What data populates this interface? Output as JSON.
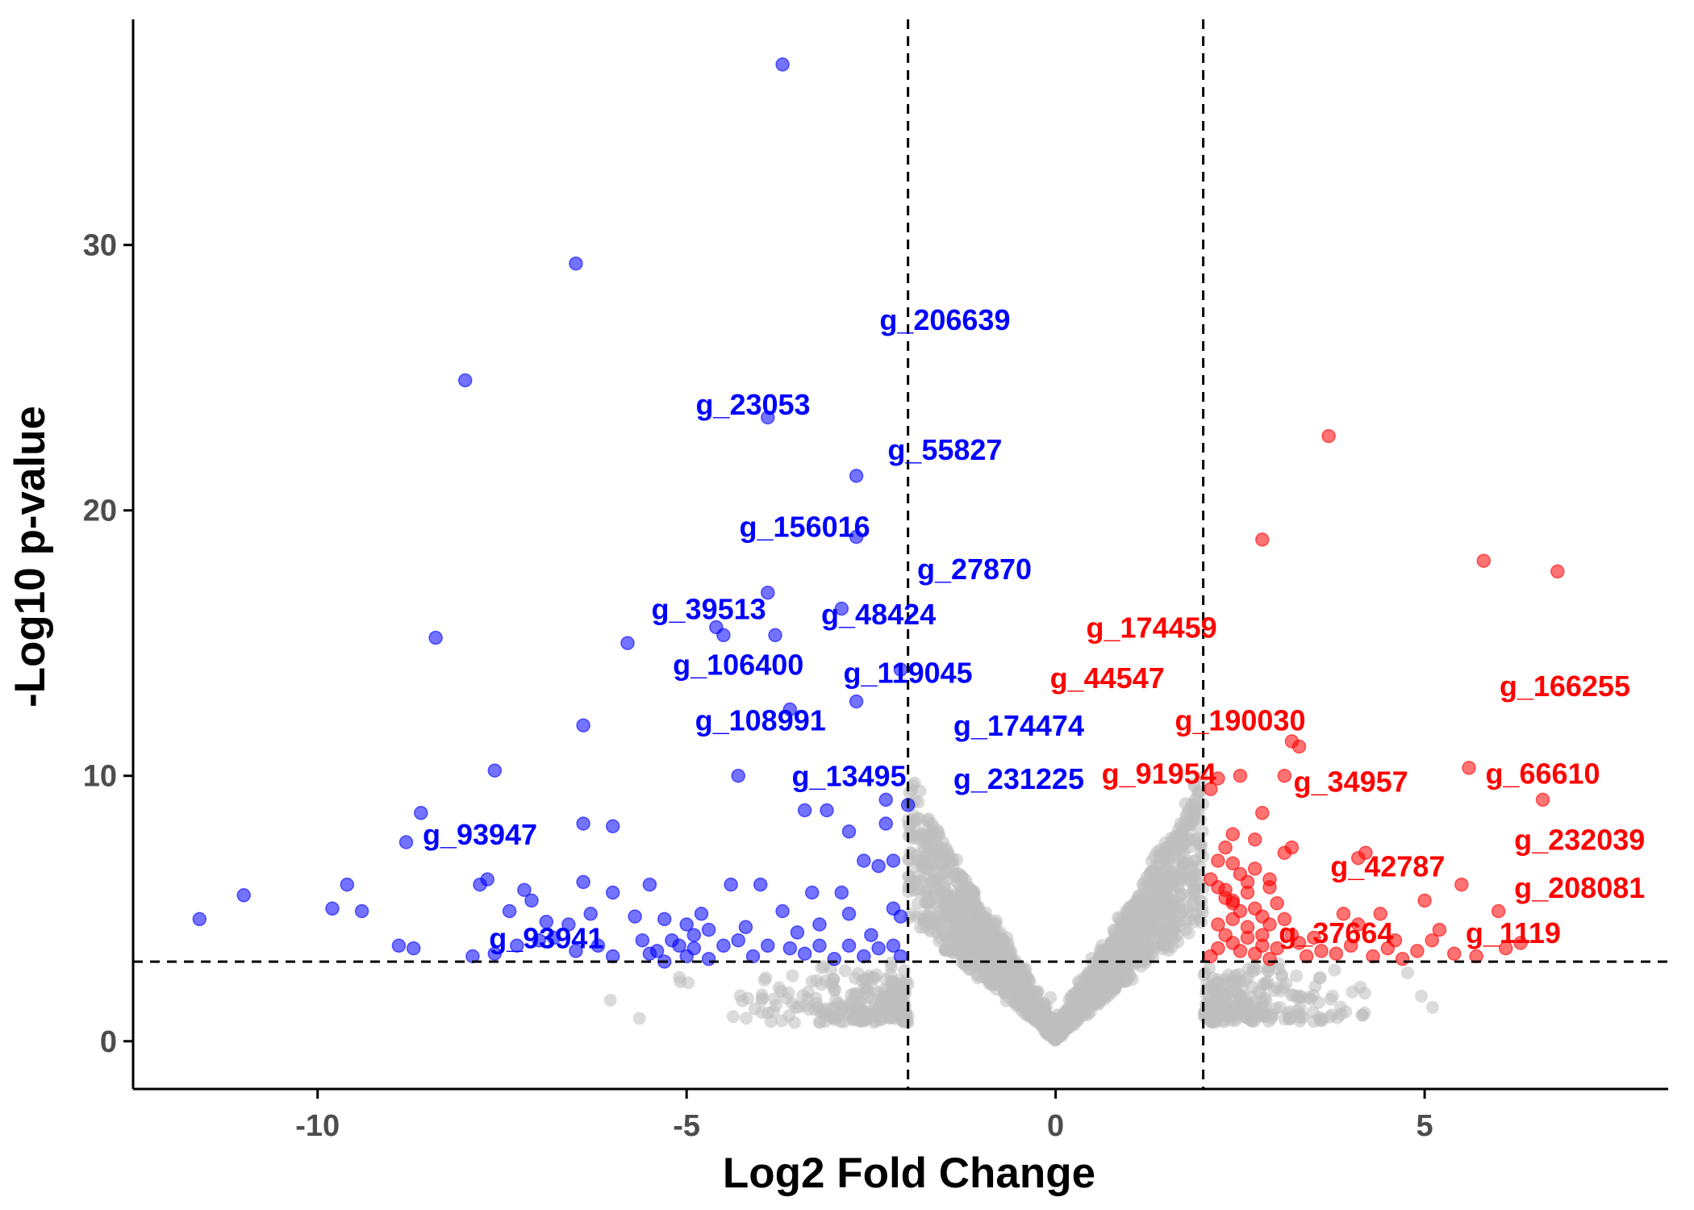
{
  "chart_data": {
    "type": "scatter",
    "title": "",
    "xlabel": "Log2 Fold Change",
    "ylabel": "-Log10 p-value",
    "xlim": [
      -12.5,
      8.3
    ],
    "ylim": [
      -1.8,
      38.5
    ],
    "xticks": [
      -10,
      -5,
      0,
      5
    ],
    "yticks": [
      0,
      10,
      20,
      30
    ],
    "grid": false,
    "legend": "none",
    "thresholds": {
      "log2fc": [
        -2,
        2
      ],
      "neg_log10_p": 3
    },
    "colors": {
      "down": "#0000ff",
      "up": "#ff0000",
      "ns": "#bebebe",
      "line": "#000000"
    },
    "series": [
      {
        "name": "down",
        "points": [
          [
            -3.7,
            36.8
          ],
          [
            -6.5,
            29.3
          ],
          [
            -8.0,
            24.9
          ],
          [
            -3.9,
            23.5
          ],
          [
            -2.7,
            21.3
          ],
          [
            -2.7,
            19.0
          ],
          [
            -3.9,
            16.9
          ],
          [
            -2.9,
            16.3
          ],
          [
            -4.6,
            15.6
          ],
          [
            -4.5,
            15.3
          ],
          [
            -3.8,
            15.3
          ],
          [
            -8.4,
            15.2
          ],
          [
            -5.8,
            15.0
          ],
          [
            -2.1,
            14.0
          ],
          [
            -3.6,
            12.5
          ],
          [
            -2.7,
            12.8
          ],
          [
            -6.4,
            11.9
          ],
          [
            -7.6,
            10.2
          ],
          [
            -4.3,
            10.0
          ],
          [
            -3.4,
            8.7
          ],
          [
            -3.1,
            8.7
          ],
          [
            -2.3,
            9.1
          ],
          [
            -2.0,
            8.9
          ],
          [
            -8.6,
            8.6
          ],
          [
            -6.4,
            8.2
          ],
          [
            -6.0,
            8.1
          ],
          [
            -2.3,
            8.2
          ],
          [
            -2.8,
            7.9
          ],
          [
            -8.8,
            7.5
          ],
          [
            -7.7,
            6.1
          ],
          [
            -7.8,
            5.9
          ],
          [
            -9.6,
            5.9
          ],
          [
            -11.0,
            5.5
          ],
          [
            -9.8,
            5.0
          ],
          [
            -9.4,
            4.9
          ],
          [
            -11.6,
            4.6
          ],
          [
            -7.2,
            5.7
          ],
          [
            -7.1,
            5.3
          ],
          [
            -6.4,
            6.0
          ],
          [
            -6.0,
            5.6
          ],
          [
            -5.5,
            5.9
          ],
          [
            -4.8,
            4.8
          ],
          [
            -4.4,
            5.9
          ],
          [
            -4.0,
            5.9
          ],
          [
            -3.3,
            5.6
          ],
          [
            -2.9,
            5.6
          ],
          [
            -2.6,
            6.8
          ],
          [
            -2.4,
            6.6
          ],
          [
            -2.2,
            6.8
          ],
          [
            -7.4,
            4.9
          ],
          [
            -6.9,
            4.5
          ],
          [
            -6.6,
            4.4
          ],
          [
            -6.3,
            4.8
          ],
          [
            -5.7,
            4.7
          ],
          [
            -5.3,
            4.6
          ],
          [
            -5.0,
            4.4
          ],
          [
            -4.7,
            4.2
          ],
          [
            -4.2,
            4.3
          ],
          [
            -3.7,
            4.9
          ],
          [
            -3.2,
            4.4
          ],
          [
            -2.8,
            4.8
          ],
          [
            -2.2,
            5.0
          ],
          [
            -2.1,
            4.7
          ],
          [
            -8.9,
            3.6
          ],
          [
            -8.7,
            3.5
          ],
          [
            -7.9,
            3.2
          ],
          [
            -7.6,
            3.3
          ],
          [
            -7.3,
            3.6
          ],
          [
            -7.0,
            3.8
          ],
          [
            -6.8,
            3.9
          ],
          [
            -6.5,
            3.4
          ],
          [
            -6.2,
            3.6
          ],
          [
            -6.0,
            3.2
          ],
          [
            -5.6,
            3.8
          ],
          [
            -5.4,
            3.4
          ],
          [
            -5.3,
            3.0
          ],
          [
            -5.1,
            3.6
          ],
          [
            -4.9,
            3.5
          ],
          [
            -4.7,
            3.1
          ],
          [
            -4.5,
            3.6
          ],
          [
            -4.3,
            3.8
          ],
          [
            -4.1,
            3.2
          ],
          [
            -3.9,
            3.6
          ],
          [
            -3.6,
            3.5
          ],
          [
            -3.4,
            3.3
          ],
          [
            -3.2,
            3.6
          ],
          [
            -3.0,
            3.1
          ],
          [
            -2.8,
            3.6
          ],
          [
            -2.6,
            3.2
          ],
          [
            -2.4,
            3.5
          ],
          [
            -2.2,
            3.6
          ],
          [
            -2.1,
            3.2
          ],
          [
            -5.2,
            3.8
          ],
          [
            -4.9,
            4.0
          ],
          [
            -3.5,
            4.1
          ],
          [
            -2.5,
            4.0
          ],
          [
            -5.5,
            3.3
          ],
          [
            -5.0,
            3.2
          ]
        ]
      },
      {
        "name": "up",
        "points": [
          [
            3.7,
            22.8
          ],
          [
            2.8,
            18.9
          ],
          [
            5.8,
            18.1
          ],
          [
            6.8,
            17.7
          ],
          [
            3.2,
            11.3
          ],
          [
            3.3,
            11.1
          ],
          [
            5.6,
            10.3
          ],
          [
            6.6,
            9.1
          ],
          [
            2.2,
            9.9
          ],
          [
            2.5,
            10.0
          ],
          [
            3.1,
            10.0
          ],
          [
            2.1,
            9.5
          ],
          [
            2.8,
            8.6
          ],
          [
            2.4,
            7.8
          ],
          [
            2.7,
            7.6
          ],
          [
            3.1,
            7.1
          ],
          [
            3.2,
            7.3
          ],
          [
            2.3,
            7.3
          ],
          [
            2.2,
            6.8
          ],
          [
            2.4,
            6.7
          ],
          [
            2.7,
            6.5
          ],
          [
            2.9,
            6.1
          ],
          [
            4.1,
            6.9
          ],
          [
            4.2,
            7.1
          ],
          [
            5.5,
            5.9
          ],
          [
            6.0,
            4.9
          ],
          [
            5.0,
            5.3
          ],
          [
            4.4,
            4.8
          ],
          [
            3.9,
            4.8
          ],
          [
            4.1,
            4.4
          ],
          [
            2.1,
            6.1
          ],
          [
            2.2,
            5.8
          ],
          [
            2.3,
            5.4
          ],
          [
            2.4,
            5.2
          ],
          [
            2.5,
            4.9
          ],
          [
            2.6,
            5.6
          ],
          [
            2.7,
            5.0
          ],
          [
            2.8,
            4.7
          ],
          [
            2.9,
            4.4
          ],
          [
            3.0,
            5.2
          ],
          [
            3.1,
            4.6
          ],
          [
            2.2,
            4.4
          ],
          [
            2.3,
            4.0
          ],
          [
            2.4,
            3.7
          ],
          [
            2.5,
            3.4
          ],
          [
            2.6,
            3.9
          ],
          [
            2.7,
            3.3
          ],
          [
            2.8,
            3.6
          ],
          [
            2.9,
            3.1
          ],
          [
            3.2,
            4.0
          ],
          [
            3.3,
            3.7
          ],
          [
            3.5,
            3.9
          ],
          [
            3.6,
            3.4
          ],
          [
            3.8,
            3.3
          ],
          [
            4.0,
            3.6
          ],
          [
            4.3,
            3.2
          ],
          [
            4.5,
            3.5
          ],
          [
            4.7,
            3.1
          ],
          [
            4.9,
            3.4
          ],
          [
            5.1,
            3.8
          ],
          [
            5.2,
            4.2
          ],
          [
            5.4,
            3.3
          ],
          [
            5.7,
            3.2
          ],
          [
            6.1,
            3.5
          ],
          [
            6.3,
            3.7
          ],
          [
            2.1,
            3.2
          ],
          [
            2.2,
            3.5
          ],
          [
            2.4,
            4.6
          ],
          [
            2.6,
            4.3
          ],
          [
            2.8,
            4.0
          ],
          [
            3.0,
            3.5
          ],
          [
            2.5,
            6.3
          ],
          [
            2.3,
            5.7
          ],
          [
            2.6,
            6.0
          ],
          [
            2.4,
            5.3
          ],
          [
            2.9,
            5.8
          ],
          [
            3.4,
            3.2
          ],
          [
            4.6,
            3.8
          ]
        ]
      }
    ],
    "labels": [
      {
        "text": "g_206639",
        "x": -1.5,
        "y": 27.2,
        "group": "down"
      },
      {
        "text": "g_23053",
        "x": -4.1,
        "y": 24.0,
        "group": "down"
      },
      {
        "text": "g_55827",
        "x": -1.5,
        "y": 22.3,
        "group": "down"
      },
      {
        "text": "g_156016",
        "x": -3.4,
        "y": 19.4,
        "group": "down"
      },
      {
        "text": "g_27870",
        "x": -1.1,
        "y": 17.8,
        "group": "down"
      },
      {
        "text": "g_39513",
        "x": -4.7,
        "y": 16.3,
        "group": "down"
      },
      {
        "text": "g_48424",
        "x": -2.4,
        "y": 16.1,
        "group": "down"
      },
      {
        "text": "g_106400",
        "x": -4.3,
        "y": 14.2,
        "group": "down"
      },
      {
        "text": "g_119045",
        "x": -2.0,
        "y": 13.9,
        "group": "down"
      },
      {
        "text": "g_108991",
        "x": -4.0,
        "y": 12.1,
        "group": "down"
      },
      {
        "text": "g_174474",
        "x": -0.5,
        "y": 11.9,
        "group": "down"
      },
      {
        "text": "g_13495",
        "x": -2.8,
        "y": 10.0,
        "group": "down"
      },
      {
        "text": "g_231225",
        "x": -0.5,
        "y": 9.9,
        "group": "down"
      },
      {
        "text": "g_93947",
        "x": -7.8,
        "y": 7.8,
        "group": "down"
      },
      {
        "text": "g_93941",
        "x": -6.9,
        "y": 3.9,
        "group": "down"
      },
      {
        "text": "g_174459",
        "x": 1.3,
        "y": 15.6,
        "group": "up"
      },
      {
        "text": "g_44547",
        "x": 0.7,
        "y": 13.7,
        "group": "up"
      },
      {
        "text": "g_190030",
        "x": 2.5,
        "y": 12.1,
        "group": "up"
      },
      {
        "text": "g_166255",
        "x": 6.9,
        "y": 13.4,
        "group": "up"
      },
      {
        "text": "g_91954",
        "x": 1.4,
        "y": 10.1,
        "group": "up"
      },
      {
        "text": "g_34957",
        "x": 4.0,
        "y": 9.8,
        "group": "up"
      },
      {
        "text": "g_66610",
        "x": 6.6,
        "y": 10.1,
        "group": "up"
      },
      {
        "text": "g_232039",
        "x": 7.1,
        "y": 7.6,
        "group": "up"
      },
      {
        "text": "g_42787",
        "x": 4.5,
        "y": 6.6,
        "group": "up"
      },
      {
        "text": "g_208081",
        "x": 7.1,
        "y": 5.8,
        "group": "up"
      },
      {
        "text": "g_37664",
        "x": 3.8,
        "y": 4.1,
        "group": "up"
      },
      {
        "text": "g_1119",
        "x": 6.2,
        "y": 4.1,
        "group": "up"
      }
    ]
  }
}
